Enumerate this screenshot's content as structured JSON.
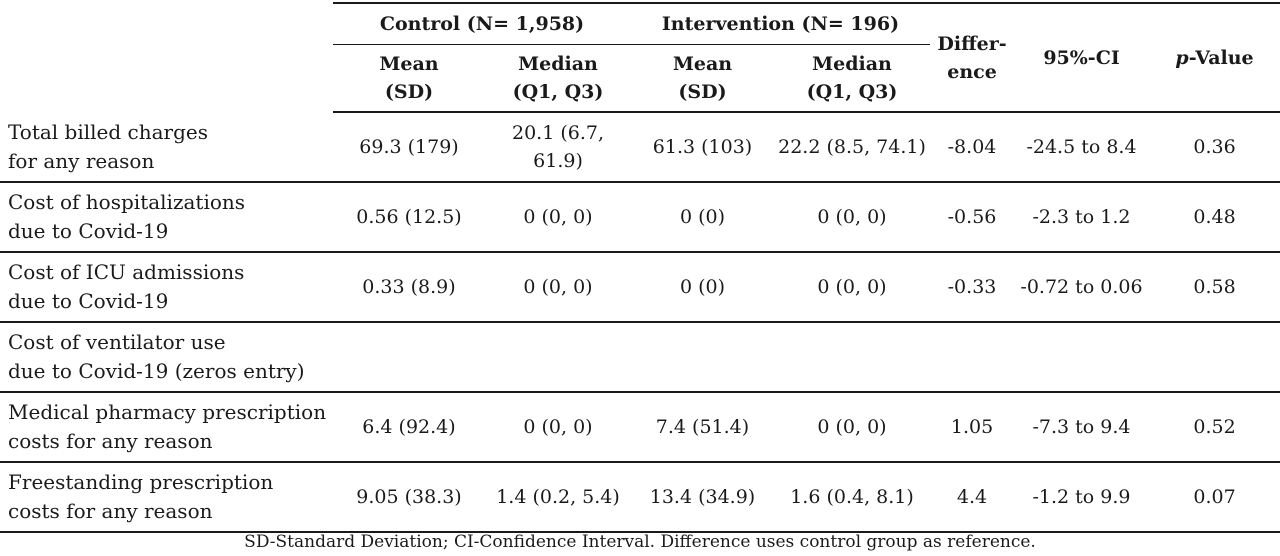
{
  "header": {
    "control_group": "Control (N= 1,958)",
    "intervention_group": "Intervention (N= 196)",
    "mean_line1": "Mean",
    "mean_line2": "(SD)",
    "median_line1": "Median",
    "median_line2": "(Q1, Q3)",
    "difference_line1": "Differ-",
    "difference_line2": "ence",
    "ci": "95%-CI",
    "pvalue_italic": "p",
    "pvalue_rest": "-Value"
  },
  "rows": [
    {
      "label_line1": "Total billed charges",
      "label_line2": "for any reason",
      "control_mean": "69.3 (179)",
      "control_median": "20.1 (6.7, 61.9)",
      "intervention_mean": "61.3 (103)",
      "intervention_median": "22.2 (8.5, 74.1)",
      "difference": "-8.04",
      "ci": "-24.5 to 8.4",
      "pvalue": "0.36"
    },
    {
      "label_line1": "Cost of hospitalizations",
      "label_line2": "due to Covid-19",
      "control_mean": "0.56 (12.5)",
      "control_median": "0 (0, 0)",
      "intervention_mean": "0 (0)",
      "intervention_median": "0 (0, 0)",
      "difference": "-0.56",
      "ci": "-2.3 to 1.2",
      "pvalue": "0.48"
    },
    {
      "label_line1": "Cost of ICU admissions",
      "label_line2": "due to Covid-19",
      "control_mean": "0.33 (8.9)",
      "control_median": "0 (0, 0)",
      "intervention_mean": "0 (0)",
      "intervention_median": "0 (0, 0)",
      "difference": "-0.33",
      "ci": "-0.72 to 0.06",
      "pvalue": "0.58"
    },
    {
      "label_line1": "Cost of ventilator use",
      "label_line2": "due to Covid-19 (zeros entry)",
      "control_mean": "",
      "control_median": "",
      "intervention_mean": "",
      "intervention_median": "",
      "difference": "",
      "ci": "",
      "pvalue": ""
    },
    {
      "label_line1": "Medical pharmacy prescription",
      "label_line2": "costs for any reason",
      "control_mean": "6.4 (92.4)",
      "control_median": "0 (0, 0)",
      "intervention_mean": "7.4 (51.4)",
      "intervention_median": "0 (0, 0)",
      "difference": "1.05",
      "ci": "-7.3 to 9.4",
      "pvalue": "0.52"
    },
    {
      "label_line1": "Freestanding prescription",
      "label_line2": "costs for any reason",
      "control_mean": "9.05 (38.3)",
      "control_median": "1.4 (0.2, 5.4)",
      "intervention_mean": "13.4 (34.9)",
      "intervention_median": "1.6 (0.4, 8.1)",
      "difference": "4.4",
      "ci": "-1.2 to 9.9",
      "pvalue": "0.07"
    }
  ],
  "footnote": "SD-Standard Deviation; CI-Confidence Interval. Difference uses control group as reference."
}
